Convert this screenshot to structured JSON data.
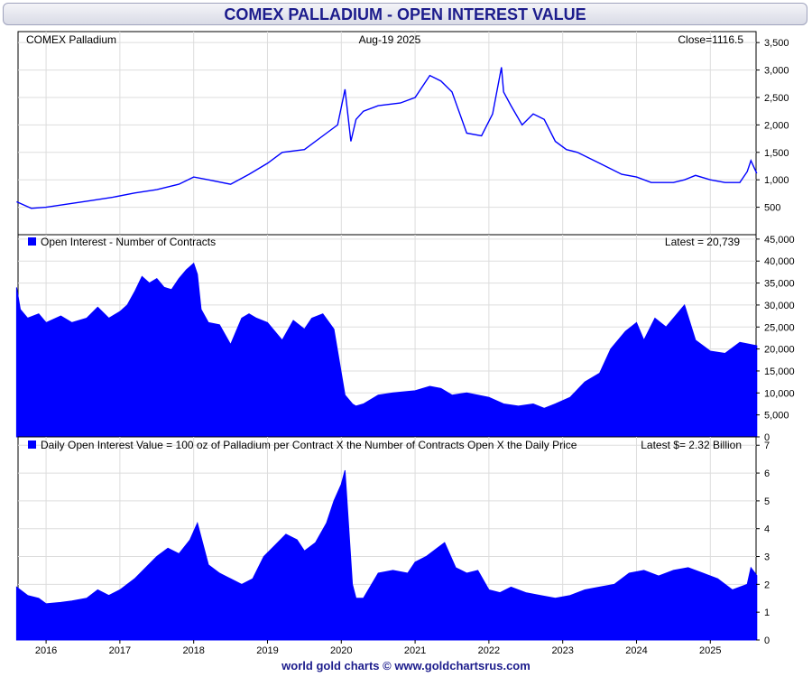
{
  "title": "COMEX PALLADIUM - OPEN INTEREST VALUE",
  "footer": "world gold charts © www.goldchartsrus.com",
  "colors": {
    "series": "#0000ff",
    "title": "#1c1c8c",
    "grid": "#dddddd"
  },
  "chart_data": [
    {
      "type": "line",
      "label_left": "COMEX Palladium",
      "label_center": "Aug-19  2025",
      "label_right": "Close=1116.5",
      "ylim": [
        0,
        3700
      ],
      "yticks": [
        500,
        1000,
        1500,
        2000,
        2500,
        3000,
        3500
      ],
      "ytick_labels": [
        "500",
        "1,000",
        "1,500",
        "2,000",
        "2,500",
        "3,000",
        "3,500"
      ],
      "x": [
        2015.6,
        2015.8,
        2016.0,
        2016.3,
        2016.6,
        2016.9,
        2017.2,
        2017.5,
        2017.8,
        2018.0,
        2018.2,
        2018.5,
        2018.75,
        2019.0,
        2019.2,
        2019.5,
        2019.8,
        2019.95,
        2020.05,
        2020.13,
        2020.2,
        2020.3,
        2020.5,
        2020.8,
        2021.0,
        2021.2,
        2021.35,
        2021.5,
        2021.7,
        2021.9,
        2022.05,
        2022.17,
        2022.2,
        2022.3,
        2022.45,
        2022.6,
        2022.75,
        2022.9,
        2023.05,
        2023.2,
        2023.5,
        2023.8,
        2024.0,
        2024.2,
        2024.5,
        2024.65,
        2024.8,
        2025.0,
        2025.2,
        2025.4,
        2025.5,
        2025.55,
        2025.63
      ],
      "values": [
        600,
        480,
        500,
        560,
        620,
        680,
        760,
        820,
        920,
        1050,
        1000,
        920,
        1100,
        1300,
        1500,
        1550,
        1850,
        2000,
        2650,
        1700,
        2100,
        2250,
        2350,
        2400,
        2500,
        2900,
        2800,
        2600,
        1850,
        1800,
        2200,
        3050,
        2600,
        2350,
        2000,
        2200,
        2100,
        1700,
        1550,
        1500,
        1300,
        1100,
        1050,
        950,
        950,
        1000,
        1080,
        1000,
        950,
        950,
        1150,
        1350,
        1116.5
      ]
    },
    {
      "type": "area",
      "label_left": "Open Interest - Number of Contracts",
      "label_right": "Latest = 20,739",
      "ylim": [
        0,
        46000
      ],
      "yticks": [
        0,
        5000,
        10000,
        15000,
        20000,
        25000,
        30000,
        35000,
        40000,
        45000
      ],
      "ytick_labels": [
        "0",
        "5,000",
        "10,000",
        "15,000",
        "20,000",
        "25,000",
        "30,000",
        "35,000",
        "40,000",
        "45,000"
      ],
      "x": [
        2015.6,
        2015.65,
        2015.75,
        2015.9,
        2016.0,
        2016.2,
        2016.35,
        2016.55,
        2016.7,
        2016.85,
        2017.0,
        2017.1,
        2017.2,
        2017.3,
        2017.4,
        2017.5,
        2017.6,
        2017.7,
        2017.8,
        2017.9,
        2018.0,
        2018.05,
        2018.1,
        2018.2,
        2018.35,
        2018.5,
        2018.65,
        2018.75,
        2018.85,
        2019.0,
        2019.2,
        2019.35,
        2019.5,
        2019.6,
        2019.75,
        2019.9,
        2020.05,
        2020.15,
        2020.2,
        2020.3,
        2020.5,
        2020.7,
        2021.0,
        2021.2,
        2021.35,
        2021.5,
        2021.7,
        2022.0,
        2022.2,
        2022.4,
        2022.6,
        2022.75,
        2022.9,
        2023.1,
        2023.3,
        2023.5,
        2023.65,
        2023.85,
        2024.0,
        2024.1,
        2024.25,
        2024.4,
        2024.55,
        2024.65,
        2024.8,
        2025.0,
        2025.2,
        2025.4,
        2025.63
      ],
      "values": [
        34000,
        29000,
        27000,
        28000,
        26000,
        27500,
        26000,
        27000,
        29500,
        27000,
        28500,
        30000,
        33000,
        36500,
        35000,
        36000,
        34000,
        33500,
        36000,
        38000,
        39500,
        37000,
        29000,
        26000,
        25500,
        21000,
        27000,
        28000,
        27000,
        26000,
        22000,
        26500,
        24500,
        27000,
        28000,
        24500,
        9500,
        7500,
        7000,
        7500,
        9500,
        10000,
        10500,
        11500,
        11000,
        9500,
        10000,
        9000,
        7500,
        7000,
        7500,
        6500,
        7500,
        9000,
        12500,
        14500,
        20000,
        24000,
        26000,
        22000,
        27000,
        25000,
        28000,
        30000,
        22000,
        19500,
        19000,
        21500,
        20739
      ]
    },
    {
      "type": "area",
      "label_left": "Daily Open Interest Value = 100 oz of Palladium per Contract X the Number of Contracts Open X the Daily Price",
      "label_right": "Latest $= 2.32 Billion",
      "ylim": [
        0,
        7.3
      ],
      "yticks": [
        0,
        1,
        2,
        3,
        4,
        5,
        6,
        7
      ],
      "ytick_labels": [
        "0",
        "1",
        "2",
        "3",
        "4",
        "5",
        "6",
        "7"
      ],
      "x": [
        2015.6,
        2015.75,
        2015.9,
        2016.0,
        2016.2,
        2016.35,
        2016.55,
        2016.7,
        2016.85,
        2017.0,
        2017.2,
        2017.35,
        2017.5,
        2017.65,
        2017.8,
        2017.95,
        2018.05,
        2018.2,
        2018.35,
        2018.5,
        2018.65,
        2018.8,
        2018.95,
        2019.1,
        2019.25,
        2019.4,
        2019.5,
        2019.65,
        2019.8,
        2019.9,
        2020.0,
        2020.05,
        2020.15,
        2020.2,
        2020.3,
        2020.5,
        2020.7,
        2020.9,
        2021.0,
        2021.15,
        2021.3,
        2021.4,
        2021.55,
        2021.7,
        2021.85,
        2022.0,
        2022.15,
        2022.3,
        2022.5,
        2022.7,
        2022.9,
        2023.1,
        2023.3,
        2023.5,
        2023.7,
        2023.9,
        2024.1,
        2024.3,
        2024.5,
        2024.7,
        2024.9,
        2025.1,
        2025.3,
        2025.5,
        2025.55,
        2025.63
      ],
      "values": [
        1.9,
        1.6,
        1.5,
        1.3,
        1.35,
        1.4,
        1.5,
        1.8,
        1.6,
        1.8,
        2.2,
        2.6,
        3.0,
        3.3,
        3.1,
        3.6,
        4.2,
        2.7,
        2.4,
        2.2,
        2.0,
        2.2,
        3.0,
        3.4,
        3.8,
        3.6,
        3.2,
        3.5,
        4.2,
        5.0,
        5.6,
        6.1,
        2.0,
        1.5,
        1.5,
        2.4,
        2.5,
        2.4,
        2.8,
        3.0,
        3.3,
        3.5,
        2.6,
        2.4,
        2.5,
        1.8,
        1.7,
        1.9,
        1.7,
        1.6,
        1.5,
        1.6,
        1.8,
        1.9,
        2.0,
        2.4,
        2.5,
        2.3,
        2.5,
        2.6,
        2.4,
        2.2,
        1.8,
        2.0,
        2.6,
        2.32
      ]
    }
  ],
  "x_axis": {
    "ticks": [
      2016,
      2017,
      2018,
      2019,
      2020,
      2021,
      2022,
      2023,
      2024,
      2025
    ],
    "labels": [
      "2016",
      "2017",
      "2018",
      "2019",
      "2020",
      "2021",
      "2022",
      "2023",
      "2024",
      "2025"
    ],
    "xlim": [
      2015.62,
      2025.62
    ]
  }
}
